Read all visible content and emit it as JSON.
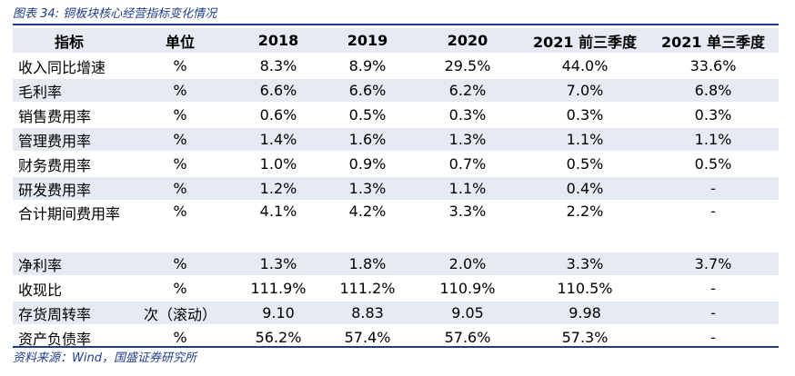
{
  "caption": "图表 34:  铜板块核心经营指标变化情况",
  "source": "资料来源：Wind，国盛证券研究所",
  "headers": [
    "指标",
    "单位",
    "2018",
    "2019",
    "2020",
    "2021 前三季度",
    "2021 单三季度"
  ],
  "rows": [
    [
      "收入同比增速",
      "%",
      "8.3%",
      "8.9%",
      "29.5%",
      "44.0%",
      "33.6%"
    ],
    [
      "毛利率",
      "%",
      "6.6%",
      "6.6%",
      "6.2%",
      "7.0%",
      "6.8%"
    ],
    [
      "销售费用率",
      "%",
      "0.6%",
      "0.5%",
      "0.3%",
      "0.3%",
      "0.3%"
    ],
    [
      "管理费用率",
      "%",
      "1.4%",
      "1.6%",
      "1.3%",
      "1.1%",
      "1.1%"
    ],
    [
      "财务费用率",
      "%",
      "1.0%",
      "0.9%",
      "0.7%",
      "0.5%",
      "0.5%"
    ],
    [
      "研发费用率",
      "%",
      "1.2%",
      "1.3%",
      "1.1%",
      "0.4%",
      "-"
    ],
    [
      "合计期间费用率",
      "%",
      "4.1%",
      "4.2%",
      "3.3%",
      "2.2%",
      "-"
    ],
    [
      "净利率",
      "%",
      "1.3%",
      "1.8%",
      "2.0%",
      "3.3%",
      "3.7%"
    ],
    [
      "收现比",
      "%",
      "111.9%",
      "111.2%",
      "110.9%",
      "110.5%",
      "-"
    ],
    [
      "存货周转率",
      "次（滚动）",
      "9.10",
      "8.83",
      "9.05",
      "9.98",
      "-"
    ],
    [
      "资产负债率",
      "%",
      "56.2%",
      "57.4%",
      "57.6%",
      "57.3%",
      "-"
    ]
  ]
}
